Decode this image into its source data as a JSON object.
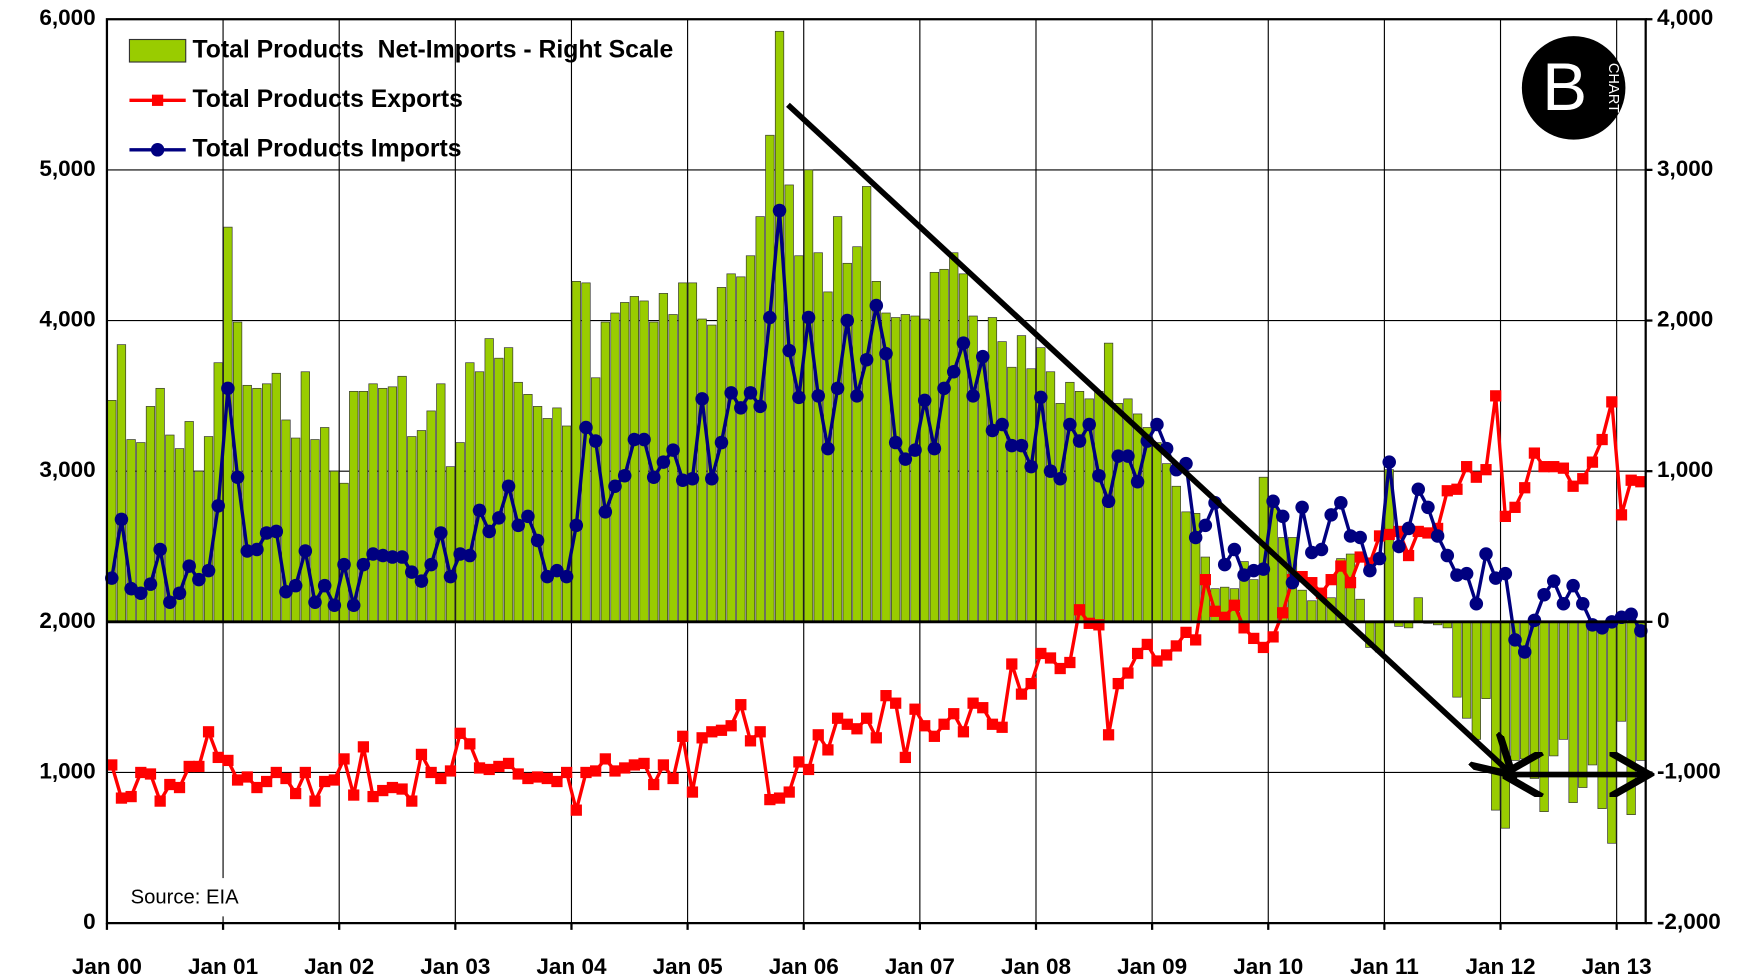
{
  "chart_data": {
    "type": "bar-line",
    "categories": [
      "Jan 00",
      null,
      null,
      null,
      null,
      null,
      null,
      null,
      null,
      null,
      null,
      null,
      "Jan 01",
      null,
      null,
      null,
      null,
      null,
      null,
      null,
      null,
      null,
      null,
      null,
      "Jan 02",
      null,
      null,
      null,
      null,
      null,
      null,
      null,
      null,
      null,
      null,
      null,
      "Jan 03",
      null,
      null,
      null,
      null,
      null,
      null,
      null,
      null,
      null,
      null,
      null,
      "Jan 04",
      null,
      null,
      null,
      null,
      null,
      null,
      null,
      null,
      null,
      null,
      null,
      "Jan 05",
      null,
      null,
      null,
      null,
      null,
      null,
      null,
      null,
      null,
      null,
      null,
      "Jan 06",
      null,
      null,
      null,
      null,
      null,
      null,
      null,
      null,
      null,
      null,
      null,
      "Jan 07",
      null,
      null,
      null,
      null,
      null,
      null,
      null,
      null,
      null,
      null,
      null,
      "Jan 08",
      null,
      null,
      null,
      null,
      null,
      null,
      null,
      null,
      null,
      null,
      null,
      "Jan 09",
      null,
      null,
      null,
      null,
      null,
      null,
      null,
      null,
      null,
      null,
      null,
      "Jan 10",
      null,
      null,
      null,
      null,
      null,
      null,
      null,
      null,
      null,
      null,
      null,
      "Jan 11",
      null,
      null,
      null,
      null,
      null,
      null,
      null,
      null,
      null,
      null,
      null,
      "Jan 12",
      null,
      null,
      null,
      null,
      null,
      null,
      null,
      null,
      null,
      null,
      null,
      "Jan 13",
      null,
      null
    ],
    "series": [
      {
        "name": "Total Products  Net-Imports - Right Scale",
        "type": "bar",
        "axis": "y2",
        "color": "#99cc00",
        "values": [
          1470,
          1840,
          1210,
          1190,
          1430,
          1550,
          1240,
          1150,
          1330,
          1000,
          1230,
          1720,
          2620,
          1990,
          1570,
          1550,
          1580,
          1650,
          1340,
          1220,
          1660,
          1210,
          1290,
          1000,
          920,
          1530,
          1530,
          1580,
          1550,
          1560,
          1630,
          1230,
          1270,
          1400,
          1580,
          1030,
          1190,
          1720,
          1660,
          1880,
          1750,
          1820,
          1590,
          1510,
          1430,
          1350,
          1420,
          1300,
          2260,
          2250,
          1620,
          1990,
          2050,
          2120,
          2160,
          2130,
          1990,
          2180,
          2040,
          2250,
          2250,
          2010,
          1970,
          2220,
          2310,
          2290,
          2430,
          2690,
          3230,
          3920,
          2900,
          2430,
          3000,
          2450,
          2190,
          2690,
          2380,
          2490,
          2890,
          2260,
          2050,
          2020,
          2040,
          2030,
          2010,
          2320,
          2340,
          2450,
          2310,
          2030,
          1790,
          2020,
          1860,
          1690,
          1900,
          1680,
          1820,
          1660,
          1450,
          1590,
          1530,
          1480,
          1530,
          1850,
          1450,
          1480,
          1380,
          1290,
          1190,
          1050,
          900,
          730,
          720,
          430,
          220,
          230,
          220,
          400,
          280,
          960,
          760,
          560,
          560,
          210,
          140,
          220,
          160,
          420,
          450,
          150,
          -170,
          -200,
          1010,
          -30,
          -40,
          160,
          -10,
          -20,
          -40,
          -500,
          -640,
          -780,
          -510,
          -1250,
          -1370,
          -920,
          -910,
          -1040,
          -1260,
          -890,
          -780,
          -1200,
          -1100,
          -950,
          -1240,
          -1470,
          -660,
          -1280,
          -920
        ]
      },
      {
        "name": "Total Products Exports",
        "type": "line",
        "marker": "square",
        "color": "#ff0000",
        "values": [
          1050,
          830,
          840,
          1000,
          990,
          810,
          920,
          900,
          1040,
          1040,
          1270,
          1100,
          1080,
          950,
          970,
          900,
          940,
          1000,
          960,
          860,
          1000,
          810,
          940,
          950,
          1090,
          850,
          1170,
          840,
          880,
          900,
          890,
          810,
          1120,
          1000,
          960,
          1010,
          1260,
          1190,
          1030,
          1020,
          1040,
          1060,
          990,
          960,
          970,
          960,
          940,
          1000,
          750,
          1000,
          1010,
          1090,
          1010,
          1030,
          1050,
          1060,
          920,
          1050,
          960,
          1240,
          870,
          1230,
          1270,
          1280,
          1310,
          1450,
          1210,
          1270,
          820,
          830,
          870,
          1070,
          1020,
          1250,
          1150,
          1360,
          1320,
          1290,
          1360,
          1230,
          1510,
          1460,
          1100,
          1420,
          1310,
          1240,
          1320,
          1390,
          1270,
          1460,
          1430,
          1320,
          1300,
          1720,
          1520,
          1590,
          1790,
          1760,
          1690,
          1730,
          2080,
          1990,
          1980,
          1250,
          1590,
          1660,
          1790,
          1850,
          1740,
          1780,
          1840,
          1930,
          1880,
          2280,
          2070,
          2030,
          2110,
          1960,
          1890,
          1830,
          1900,
          2060,
          2280,
          2300,
          2260,
          2190,
          2280,
          2370,
          2260,
          2430,
          2390,
          2570,
          2580,
          2600,
          2440,
          2600,
          2590,
          2620,
          2870,
          2880,
          3030,
          2960,
          3010,
          3500,
          2700,
          2760,
          2890,
          3120,
          3030,
          3030,
          3020,
          2900,
          2950,
          3060,
          3210,
          3460,
          2710,
          2940,
          2930
        ]
      },
      {
        "name": "Total Products Imports",
        "type": "line",
        "marker": "circle",
        "color": "#000080",
        "values": [
          2290,
          2680,
          2220,
          2190,
          2250,
          2480,
          2130,
          2190,
          2370,
          2280,
          2340,
          2770,
          3550,
          2960,
          2470,
          2480,
          2590,
          2600,
          2200,
          2240,
          2470,
          2130,
          2240,
          2110,
          2380,
          2110,
          2380,
          2450,
          2440,
          2430,
          2430,
          2330,
          2270,
          2380,
          2590,
          2300,
          2450,
          2440,
          2740,
          2600,
          2690,
          2900,
          2640,
          2700,
          2540,
          2300,
          2340,
          2300,
          2640,
          3290,
          3200,
          2730,
          2900,
          2970,
          3210,
          3210,
          2960,
          3060,
          3140,
          2940,
          2950,
          3480,
          2950,
          3190,
          3520,
          3420,
          3520,
          3430,
          4020,
          4730,
          3800,
          3490,
          4020,
          3500,
          3150,
          3550,
          4000,
          3500,
          3740,
          4100,
          3780,
          3190,
          3080,
          3140,
          3470,
          3150,
          3550,
          3660,
          3850,
          3500,
          3760,
          3270,
          3310,
          3170,
          3170,
          3030,
          3490,
          3000,
          2950,
          3310,
          3200,
          3310,
          2970,
          2800,
          3100,
          3100,
          2930,
          3200,
          3310,
          3150,
          3010,
          3050,
          2560,
          2640,
          2790,
          2380,
          2480,
          2310,
          2340,
          2350,
          2800,
          2700,
          2260,
          2760,
          2460,
          2480,
          2710,
          2790,
          2570,
          2560,
          2340,
          2420,
          3060,
          2500,
          2620,
          2880,
          2760,
          2570,
          2440,
          2310,
          2320,
          2120,
          2450,
          2290,
          2320,
          1880,
          1800,
          2010,
          2180,
          2270,
          2120,
          2240,
          2120,
          1980,
          1960,
          2000,
          2030,
          2050,
          1940
        ]
      }
    ],
    "ylim": [
      0,
      6000
    ],
    "yticks": [
      0,
      {
        "value": 1000,
        "label": "1,000"
      },
      {
        "value": 2000,
        "label": "2,000"
      },
      {
        "value": 3000,
        "label": "3,000"
      },
      {
        "value": 4000,
        "label": "4,000"
      },
      {
        "value": 5000,
        "label": "5,000"
      },
      {
        "value": 6000,
        "label": "6,000"
      }
    ],
    "y2lim": [
      -2000,
      4000
    ],
    "y2ticks": [
      {
        "value": -2000,
        "label": "-2,000"
      },
      {
        "value": -1000,
        "label": "-1,000"
      },
      0,
      {
        "value": 1000,
        "label": "1,000"
      },
      {
        "value": 2000,
        "label": "2,000"
      },
      {
        "value": 3000,
        "label": "3,000"
      },
      {
        "value": 4000,
        "label": "4,000"
      }
    ],
    "grid": true,
    "legend": "upper left",
    "source": "Source: EIA",
    "logo": "CHART"
  }
}
